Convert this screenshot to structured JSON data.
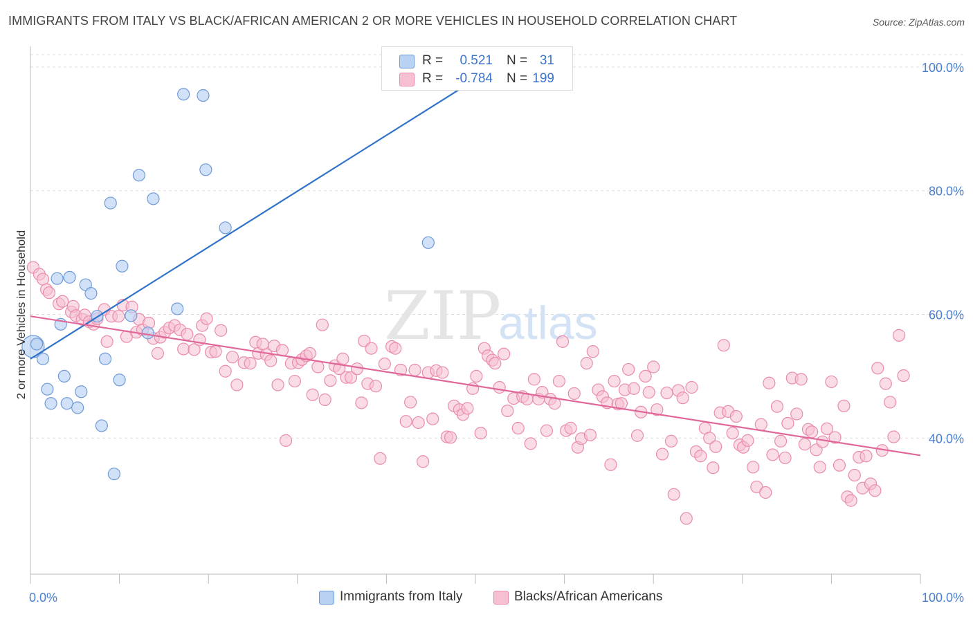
{
  "title": "IMMIGRANTS FROM ITALY VS BLACK/AFRICAN AMERICAN 2 OR MORE VEHICLES IN HOUSEHOLD CORRELATION CHART",
  "source": "Source: ZipAtlas.com",
  "watermark": {
    "zip": "ZIP",
    "atlas": "atlas"
  },
  "colors": {
    "blue_fill": "#b9d1f3",
    "blue_stroke": "#6f9ad8",
    "blue_line": "#2f72c9",
    "pink_fill": "#f6bfd2",
    "pink_stroke": "#e98cab",
    "pink_line": "#e0679a",
    "axis_text": "#4a7fd0",
    "grid": "#dddddd"
  },
  "legend": {
    "rows": [
      {
        "r_label": "R =",
        "r_value": "0.521",
        "n_label": "N =",
        "n_value": "31"
      },
      {
        "r_label": "R =",
        "r_value": "-0.784",
        "n_label": "N =",
        "n_value": "199"
      }
    ]
  },
  "bottom_legend": [
    "Immigrants from Italy",
    "Blacks/African Americans"
  ],
  "chart_data": {
    "type": "scatter",
    "title": "IMMIGRANTS FROM ITALY VS BLACK/AFRICAN AMERICAN 2 OR MORE VEHICLES IN HOUSEHOLD CORRELATION CHART",
    "xlabel": "",
    "ylabel": "2 or more Vehicles in Household",
    "xlim": [
      0,
      100
    ],
    "ylim": [
      18,
      102
    ],
    "x_tick_labels": [
      "0.0%",
      "100.0%"
    ],
    "y_tick_values": [
      40,
      60,
      80,
      100
    ],
    "y_tick_labels": [
      "40.0%",
      "60.0%",
      "80.0%",
      "100.0%"
    ],
    "grid": true,
    "legend_position": "top-center",
    "series": [
      {
        "name": "Immigrants from Italy",
        "R": 0.521,
        "N": 31,
        "trend": {
          "x0": 0,
          "y0": 52.8,
          "x1": 50,
          "y1": 98.0
        },
        "points": [
          [
            0.3,
            54.8
          ],
          [
            0.7,
            55.2
          ],
          [
            1.4,
            52.8
          ],
          [
            1.9,
            47.9
          ],
          [
            2.3,
            45.6
          ],
          [
            3.0,
            65.8
          ],
          [
            3.4,
            58.4
          ],
          [
            3.8,
            50.0
          ],
          [
            4.1,
            45.6
          ],
          [
            4.4,
            66.0
          ],
          [
            5.3,
            44.9
          ],
          [
            5.7,
            47.5
          ],
          [
            6.2,
            64.8
          ],
          [
            6.8,
            63.4
          ],
          [
            7.5,
            59.7
          ],
          [
            8.0,
            42.0
          ],
          [
            8.4,
            52.8
          ],
          [
            9.0,
            78.0
          ],
          [
            9.4,
            34.2
          ],
          [
            10.0,
            49.4
          ],
          [
            10.3,
            67.8
          ],
          [
            11.3,
            59.8
          ],
          [
            12.2,
            82.5
          ],
          [
            13.2,
            57.0
          ],
          [
            13.8,
            78.7
          ],
          [
            16.5,
            60.9
          ],
          [
            17.2,
            95.6
          ],
          [
            19.4,
            95.4
          ],
          [
            19.7,
            83.4
          ],
          [
            21.9,
            74.0
          ],
          [
            44.7,
            71.6
          ]
        ]
      },
      {
        "name": "Blacks/African Americans",
        "R": -0.784,
        "N": 199,
        "trend": {
          "x0": 0,
          "y0": 59.7,
          "x1": 100,
          "y1": 37.2
        },
        "points": [
          [
            0.3,
            67.6
          ],
          [
            1.0,
            66.5
          ],
          [
            1.4,
            65.7
          ],
          [
            1.8,
            64.0
          ],
          [
            2.1,
            63.5
          ],
          [
            3.2,
            61.7
          ],
          [
            3.6,
            62.1
          ],
          [
            4.6,
            60.4
          ],
          [
            4.8,
            61.3
          ],
          [
            5.1,
            59.8
          ],
          [
            5.8,
            59.2
          ],
          [
            6.1,
            59.9
          ],
          [
            6.6,
            58.8
          ],
          [
            7.1,
            58.4
          ],
          [
            7.5,
            59.3
          ],
          [
            8.3,
            60.8
          ],
          [
            8.6,
            55.6
          ],
          [
            9.1,
            59.7
          ],
          [
            9.9,
            59.7
          ],
          [
            10.4,
            61.5
          ],
          [
            10.8,
            56.4
          ],
          [
            11.4,
            61.2
          ],
          [
            11.9,
            57.1
          ],
          [
            12.2,
            59.2
          ],
          [
            12.6,
            57.5
          ],
          [
            13.3,
            58.6
          ],
          [
            13.8,
            56.1
          ],
          [
            14.3,
            53.7
          ],
          [
            14.6,
            56.3
          ],
          [
            15.1,
            57.1
          ],
          [
            15.6,
            57.8
          ],
          [
            16.2,
            58.2
          ],
          [
            16.8,
            57.5
          ],
          [
            17.2,
            54.4
          ],
          [
            17.6,
            56.8
          ],
          [
            18.4,
            54.3
          ],
          [
            19.0,
            55.9
          ],
          [
            19.3,
            58.2
          ],
          [
            19.8,
            59.3
          ],
          [
            20.3,
            53.9
          ],
          [
            20.8,
            54.0
          ],
          [
            21.4,
            57.4
          ],
          [
            21.9,
            50.8
          ],
          [
            22.7,
            53.1
          ],
          [
            23.2,
            48.6
          ],
          [
            24.0,
            52.2
          ],
          [
            24.7,
            52.1
          ],
          [
            25.3,
            55.5
          ],
          [
            25.6,
            53.7
          ],
          [
            26.1,
            55.2
          ],
          [
            26.5,
            53.5
          ],
          [
            27.0,
            52.5
          ],
          [
            27.4,
            54.9
          ],
          [
            27.8,
            48.6
          ],
          [
            28.3,
            54.2
          ],
          [
            28.7,
            39.6
          ],
          [
            29.3,
            52.1
          ],
          [
            29.7,
            49.2
          ],
          [
            30.1,
            52.2
          ],
          [
            30.5,
            52.7
          ],
          [
            31.0,
            53.3
          ],
          [
            31.4,
            53.7
          ],
          [
            31.7,
            47.0
          ],
          [
            32.3,
            51.5
          ],
          [
            32.8,
            58.3
          ],
          [
            33.1,
            46.2
          ],
          [
            33.7,
            49.3
          ],
          [
            34.2,
            51.7
          ],
          [
            34.7,
            51.2
          ],
          [
            35.1,
            52.8
          ],
          [
            35.5,
            49.8
          ],
          [
            36.0,
            49.8
          ],
          [
            36.7,
            51.2
          ],
          [
            37.2,
            45.7
          ],
          [
            37.5,
            55.7
          ],
          [
            37.9,
            48.8
          ],
          [
            38.3,
            54.5
          ],
          [
            38.8,
            48.4
          ],
          [
            39.3,
            36.7
          ],
          [
            39.8,
            52.0
          ],
          [
            40.6,
            54.8
          ],
          [
            41.0,
            54.5
          ],
          [
            41.6,
            51.0
          ],
          [
            42.2,
            42.7
          ],
          [
            42.7,
            45.8
          ],
          [
            43.2,
            51.0
          ],
          [
            43.6,
            42.5
          ],
          [
            44.1,
            36.2
          ],
          [
            44.7,
            50.6
          ],
          [
            45.2,
            43.1
          ],
          [
            45.6,
            50.9
          ],
          [
            46.3,
            50.6
          ],
          [
            46.8,
            40.2
          ],
          [
            47.2,
            40.1
          ],
          [
            47.6,
            45.2
          ],
          [
            48.2,
            44.6
          ],
          [
            48.6,
            43.8
          ],
          [
            49.1,
            44.8
          ],
          [
            49.7,
            48.0
          ],
          [
            50.1,
            50.0
          ],
          [
            50.6,
            40.8
          ],
          [
            51.0,
            54.5
          ],
          [
            51.4,
            53.3
          ],
          [
            51.9,
            52.6
          ],
          [
            52.2,
            52.1
          ],
          [
            52.7,
            48.2
          ],
          [
            53.2,
            53.6
          ],
          [
            53.6,
            44.4
          ],
          [
            54.3,
            46.4
          ],
          [
            54.8,
            41.6
          ],
          [
            55.3,
            46.7
          ],
          [
            55.8,
            46.3
          ],
          [
            56.2,
            39.1
          ],
          [
            56.6,
            49.5
          ],
          [
            57.1,
            46.3
          ],
          [
            57.5,
            47.4
          ],
          [
            58.0,
            41.2
          ],
          [
            58.4,
            46.3
          ],
          [
            58.9,
            45.6
          ],
          [
            59.4,
            49.2
          ],
          [
            59.8,
            55.6
          ],
          [
            60.2,
            41.2
          ],
          [
            60.7,
            41.6
          ],
          [
            61.1,
            47.2
          ],
          [
            61.5,
            38.5
          ],
          [
            61.9,
            39.9
          ],
          [
            62.5,
            52.1
          ],
          [
            62.9,
            40.5
          ],
          [
            63.2,
            54.0
          ],
          [
            63.8,
            47.8
          ],
          [
            64.3,
            46.7
          ],
          [
            64.8,
            45.7
          ],
          [
            65.2,
            35.7
          ],
          [
            65.6,
            49.2
          ],
          [
            66.0,
            45.5
          ],
          [
            66.4,
            45.6
          ],
          [
            66.8,
            47.8
          ],
          [
            67.2,
            51.1
          ],
          [
            67.8,
            48.0
          ],
          [
            68.2,
            40.4
          ],
          [
            68.6,
            44.2
          ],
          [
            69.1,
            50.0
          ],
          [
            69.5,
            47.4
          ],
          [
            70.0,
            51.5
          ],
          [
            70.4,
            44.6
          ],
          [
            71.0,
            37.4
          ],
          [
            71.5,
            47.3
          ],
          [
            72.0,
            39.5
          ],
          [
            72.3,
            30.9
          ],
          [
            72.8,
            47.7
          ],
          [
            73.3,
            46.5
          ],
          [
            73.7,
            27.0
          ],
          [
            74.3,
            48.2
          ],
          [
            74.8,
            37.8
          ],
          [
            75.3,
            37.1
          ],
          [
            75.8,
            41.6
          ],
          [
            76.3,
            40.0
          ],
          [
            76.7,
            35.2
          ],
          [
            77.0,
            38.6
          ],
          [
            77.5,
            44.1
          ],
          [
            77.9,
            55.0
          ],
          [
            78.4,
            44.3
          ],
          [
            78.9,
            40.8
          ],
          [
            79.3,
            43.5
          ],
          [
            79.7,
            38.9
          ],
          [
            80.1,
            38.5
          ],
          [
            80.6,
            39.6
          ],
          [
            81.2,
            35.3
          ],
          [
            81.6,
            32.1
          ],
          [
            82.1,
            42.2
          ],
          [
            82.6,
            31.2
          ],
          [
            83.0,
            48.9
          ],
          [
            83.4,
            37.3
          ],
          [
            83.9,
            45.1
          ],
          [
            84.3,
            39.5
          ],
          [
            84.8,
            36.8
          ],
          [
            85.1,
            42.4
          ],
          [
            85.6,
            49.7
          ],
          [
            86.1,
            43.9
          ],
          [
            86.6,
            49.5
          ],
          [
            87.0,
            39.0
          ],
          [
            87.4,
            41.4
          ],
          [
            87.8,
            41.0
          ],
          [
            88.3,
            38.1
          ],
          [
            88.7,
            35.3
          ],
          [
            89.0,
            39.4
          ],
          [
            89.5,
            41.5
          ],
          [
            90.0,
            49.1
          ],
          [
            90.4,
            40.1
          ],
          [
            90.9,
            35.6
          ],
          [
            91.4,
            45.2
          ],
          [
            91.8,
            30.5
          ],
          [
            92.2,
            29.9
          ],
          [
            92.6,
            34.0
          ],
          [
            93.1,
            36.9
          ],
          [
            93.5,
            31.9
          ],
          [
            93.9,
            37.1
          ],
          [
            94.4,
            32.6
          ],
          [
            94.9,
            31.5
          ],
          [
            95.2,
            51.3
          ],
          [
            95.7,
            38.0
          ],
          [
            96.1,
            48.8
          ],
          [
            96.6,
            45.8
          ],
          [
            97.0,
            40.2
          ],
          [
            97.6,
            56.6
          ],
          [
            98.1,
            50.1
          ]
        ]
      }
    ]
  }
}
